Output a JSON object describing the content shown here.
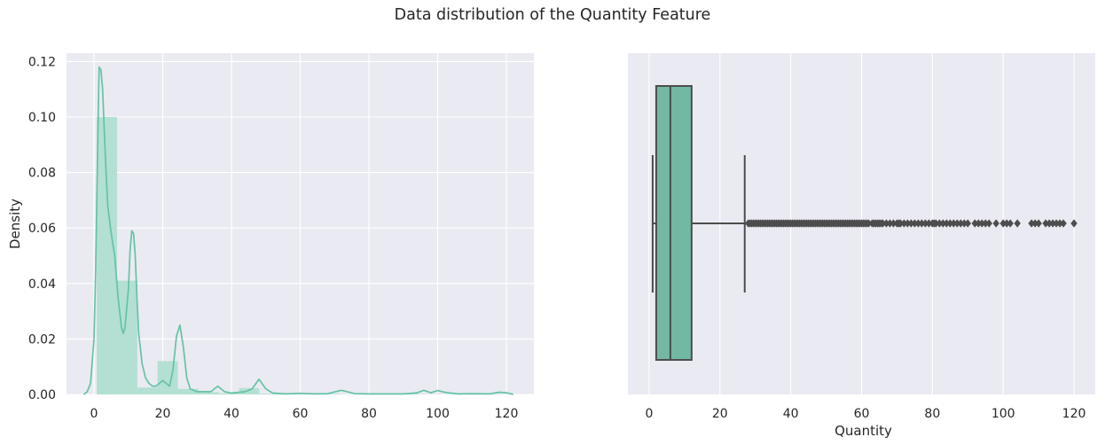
{
  "figure": {
    "suptitle": "Data distribution of the Quantity Feature"
  },
  "colors": {
    "background": "#eaeaf2",
    "grid": "#ffffff",
    "accent": "#66c2a5",
    "hist_fill": "#b3e0d2",
    "box_fill": "#73b8a2",
    "box_edge": "#4d4d4d",
    "text": "#262626"
  },
  "chart_data": [
    {
      "type": "histogram",
      "subplot": "left",
      "xlabel": "",
      "ylabel": "Density",
      "xlim": [
        -8,
        128
      ],
      "ylim": [
        0,
        0.123
      ],
      "xticks": [
        0,
        20,
        40,
        60,
        80,
        100,
        120
      ],
      "yticks": [
        0.0,
        0.02,
        0.04,
        0.06,
        0.08,
        0.1,
        0.12
      ],
      "ytick_labels": [
        "0.00",
        "0.02",
        "0.04",
        "0.06",
        "0.08",
        "0.10",
        "0.12"
      ],
      "grid": true,
      "bins": {
        "edges": [
          0.8,
          6.7,
          12.6,
          18.5,
          24.4,
          30.4,
          36.3,
          42.2,
          48.1,
          54.0,
          59.9,
          65.9,
          71.8,
          77.7,
          83.6,
          89.5,
          95.4,
          101.4,
          107.3,
          113.2,
          119.1
        ],
        "density": [
          0.1,
          0.041,
          0.0025,
          0.012,
          0.002,
          0.0008,
          0.0004,
          0.0023,
          0.0003,
          0.0002,
          0.0001,
          0.0002,
          0.0001,
          0.0001,
          0.0001,
          0.0002,
          0.0001,
          0.0001,
          0.0001,
          0.0001
        ]
      },
      "kde": {
        "x": [
          -3,
          -2,
          -1,
          0,
          0.5,
          1,
          1.5,
          2,
          2.5,
          3,
          3.5,
          4,
          5,
          6,
          7,
          8,
          8.5,
          9,
          10,
          10.5,
          11,
          11.5,
          12,
          12.5,
          13,
          14,
          15,
          16,
          17,
          18,
          19,
          20,
          21,
          22,
          23,
          24,
          25,
          26,
          27,
          28,
          30,
          32,
          34,
          36,
          38,
          40,
          44,
          46,
          48,
          50,
          52,
          56,
          60,
          64,
          68,
          72,
          76,
          80,
          85,
          90,
          94,
          96,
          98,
          100,
          102,
          106,
          110,
          115,
          118,
          120,
          122
        ],
        "y": [
          0.0,
          0.001,
          0.004,
          0.02,
          0.045,
          0.085,
          0.118,
          0.117,
          0.11,
          0.095,
          0.08,
          0.068,
          0.058,
          0.05,
          0.035,
          0.024,
          0.022,
          0.024,
          0.038,
          0.052,
          0.059,
          0.058,
          0.05,
          0.035,
          0.022,
          0.011,
          0.006,
          0.004,
          0.003,
          0.003,
          0.004,
          0.005,
          0.004,
          0.003,
          0.009,
          0.021,
          0.025,
          0.017,
          0.006,
          0.002,
          0.001,
          0.001,
          0.001,
          0.003,
          0.001,
          0.0005,
          0.001,
          0.002,
          0.0055,
          0.002,
          0.0005,
          0.0002,
          0.0004,
          0.0002,
          0.0003,
          0.0015,
          0.0003,
          0.0002,
          0.0002,
          0.0002,
          0.0006,
          0.0015,
          0.0006,
          0.0014,
          0.0008,
          0.0002,
          0.0003,
          0.0002,
          0.0008,
          0.0006,
          0.0
        ]
      }
    },
    {
      "type": "box",
      "subplot": "right",
      "xlabel": "Quantity",
      "ylabel": "",
      "xlim": [
        -6,
        126
      ],
      "xticks": [
        0,
        20,
        40,
        60,
        80,
        100,
        120
      ],
      "grid": true,
      "box": {
        "whislo": 1,
        "q1": 2,
        "median": 6,
        "q3": 12,
        "whishi": 27
      },
      "fliers": [
        28,
        28.5,
        29,
        29.5,
        30,
        30.5,
        31,
        31.5,
        32,
        32.5,
        33,
        33.5,
        34,
        34.5,
        35,
        35.5,
        36,
        36.5,
        37,
        37.5,
        38,
        38.5,
        39,
        39.5,
        40,
        40.5,
        41,
        41.5,
        42,
        42.5,
        43,
        43.5,
        44,
        44.5,
        45,
        45.5,
        46,
        46.5,
        47,
        47.5,
        48,
        48.5,
        49,
        49.5,
        50,
        50.5,
        51,
        51.5,
        52,
        52.5,
        53,
        53.5,
        54,
        54.5,
        55,
        55.5,
        56,
        56.5,
        57,
        57.5,
        58,
        58.5,
        59,
        59.5,
        60,
        60.5,
        61,
        61.5,
        62,
        63,
        63.5,
        64,
        64.5,
        65,
        65.5,
        66,
        67,
        68,
        69,
        70,
        70.5,
        71,
        72,
        73,
        74,
        75,
        76,
        77,
        78,
        79,
        80,
        80.5,
        81,
        82,
        83,
        84,
        85,
        86,
        87,
        88,
        89,
        90,
        92,
        93,
        94,
        95,
        96,
        98,
        100,
        101,
        102,
        104,
        108,
        109,
        110,
        112,
        113,
        114,
        115,
        116,
        117,
        120
      ]
    }
  ]
}
